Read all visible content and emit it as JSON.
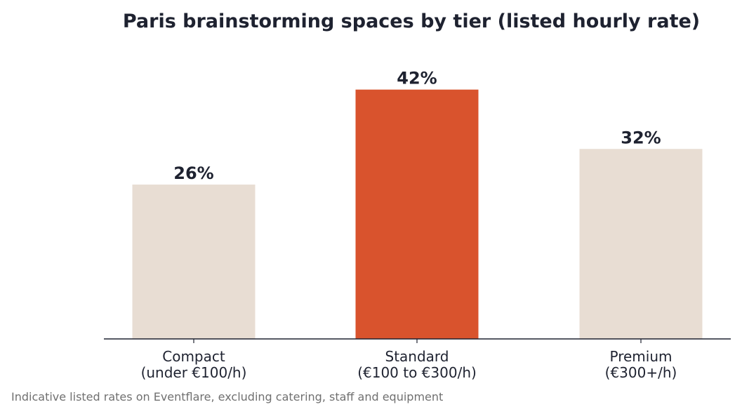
{
  "chart_data": {
    "type": "bar",
    "title": "Paris brainstorming spaces by tier (listed hourly rate)",
    "categories": [
      [
        "Compact",
        "(under €100/h)"
      ],
      [
        "Standard",
        "(€100 to €300/h)"
      ],
      [
        "Premium",
        "(€300+/h)"
      ]
    ],
    "values": [
      26,
      42,
      32
    ],
    "value_labels": [
      "26%",
      "42%",
      "32%"
    ],
    "unit": "%",
    "ylim": [
      0,
      50
    ],
    "grid": false,
    "legend": "none",
    "highlight_index": 1,
    "colors": {
      "bar": "#e8ddd3",
      "highlight": "#d9532d",
      "text": "#1e2230",
      "axis": "#1e2230",
      "footnote": "#707070"
    },
    "footnote": "Indicative listed rates on Eventflare, excluding catering, staff and equipment"
  }
}
